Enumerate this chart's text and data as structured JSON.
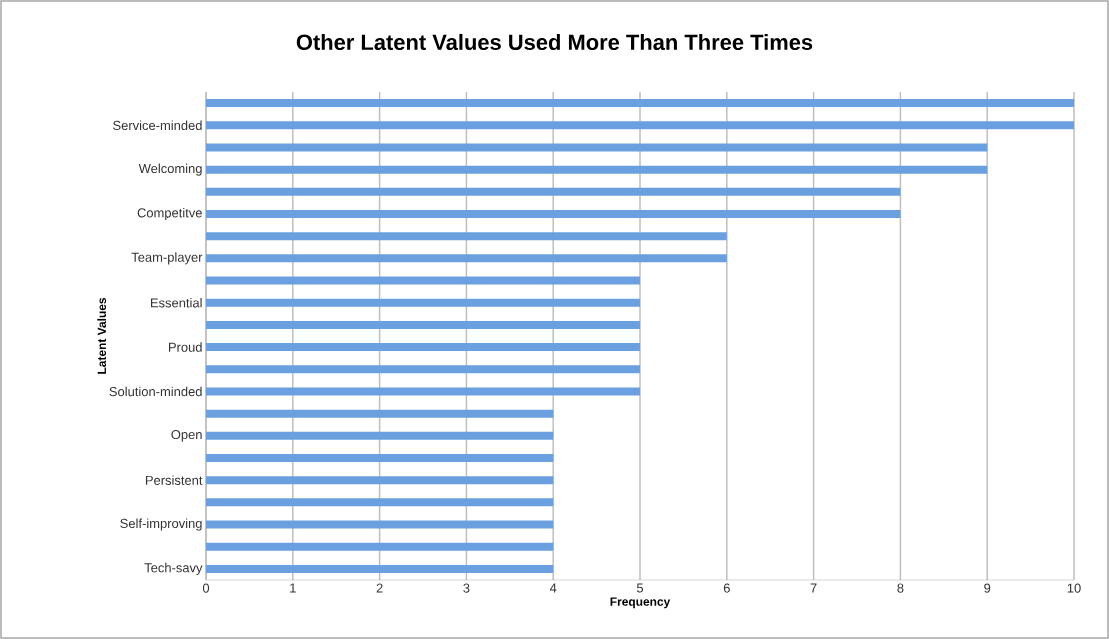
{
  "chart_data": {
    "type": "bar",
    "orientation": "horizontal",
    "title": "Other Latent Values Used More Than Three Times",
    "xlabel": "Frequency",
    "ylabel": "Latent Values",
    "categories": [
      null,
      "Service-minded",
      null,
      "Welcoming",
      null,
      "Competitve",
      null,
      "Team-player",
      null,
      "Essential",
      null,
      "Proud",
      null,
      "Solution-minded",
      null,
      "Open",
      null,
      "Persistent",
      null,
      "Self-improving",
      null,
      "Tech-savy"
    ],
    "values": [
      10,
      10,
      9,
      9,
      8,
      8,
      6,
      6,
      5,
      5,
      5,
      5,
      5,
      5,
      4,
      4,
      4,
      4,
      4,
      4,
      4,
      4
    ],
    "color": "#6a9fe0",
    "xlim": [
      0,
      10
    ],
    "xticks": [
      0,
      1,
      2,
      3,
      4,
      5,
      6,
      7,
      8,
      9,
      10
    ],
    "grid": "x"
  }
}
